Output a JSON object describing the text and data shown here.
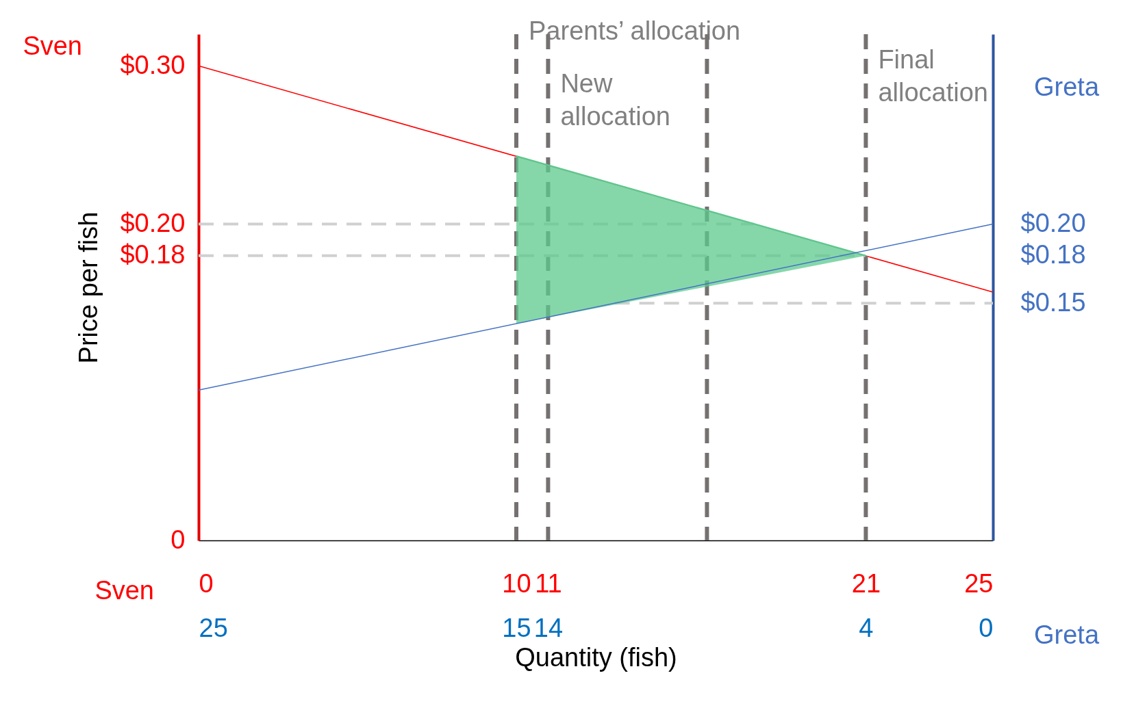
{
  "chart_data": {
    "type": "line",
    "xlabel": "Quantity (fish)",
    "ylabel": "Price per fish",
    "xlim": [
      0,
      25
    ],
    "xticks": [
      0,
      10,
      11,
      21,
      25
    ],
    "x2lim": [
      25,
      0
    ],
    "x2ticks": [
      25,
      15,
      14,
      4,
      0
    ],
    "ylim": [
      0,
      0.32
    ],
    "yticks": [
      0,
      {
        "value": 0.18,
        "label": "$0.18"
      },
      {
        "value": 0.2,
        "label": "$0.20"
      },
      {
        "value": 0.3,
        "label": "$0.30"
      }
    ],
    "y2lim": [
      0,
      0.32
    ],
    "y2ticks": [
      {
        "value": 0.15,
        "label": "$0.15"
      },
      {
        "value": 0.18,
        "label": "$0.18"
      },
      {
        "value": 0.2,
        "label": "$0.20"
      }
    ],
    "series": [
      {
        "name": "Sven",
        "color": "#ff0000",
        "x": [
          0,
          25
        ],
        "values": [
          0.3,
          0.157
        ]
      },
      {
        "name": "Greta",
        "color": "#4472c4",
        "axis": "y2",
        "x": [
          0,
          25
        ],
        "values": [
          0.095,
          0.2
        ]
      },
      {
        "type": "line",
        "color": "#5cc98e",
        "x": [
          10,
          21
        ],
        "values": [
          0.243,
          0.18
        ],
        "lower": [
          0.137,
          0.18
        ],
        "upper": [
          0.243,
          0.18
        ]
      }
    ],
    "ref_lines": [
      {
        "axis": "x",
        "value": 10,
        "label": "Parents’ allocation",
        "color": "#767171",
        "line_style": "dashed"
      },
      {
        "axis": "x",
        "value": 11,
        "label": "New allocation",
        "color": "#767171",
        "line_style": "dashed"
      },
      {
        "axis": "x",
        "value": 16,
        "color": "#767171",
        "line_style": "dashed"
      },
      {
        "axis": "x",
        "value": 21,
        "label": "Final allocation",
        "color": "#767171",
        "line_style": "dashed"
      },
      {
        "axis": "y",
        "value": 0.2,
        "color": "#d0d0d0",
        "line_style": "dashed"
      },
      {
        "axis": "y",
        "value": 0.18,
        "color": "#d0d0d0",
        "line_style": "dashed"
      },
      {
        "axis": "y2",
        "value": 0.15,
        "color": "#d0d0d0",
        "line_style": "dashed"
      }
    ],
    "annotations": [
      "Sven",
      "Greta"
    ],
    "grid": false
  }
}
